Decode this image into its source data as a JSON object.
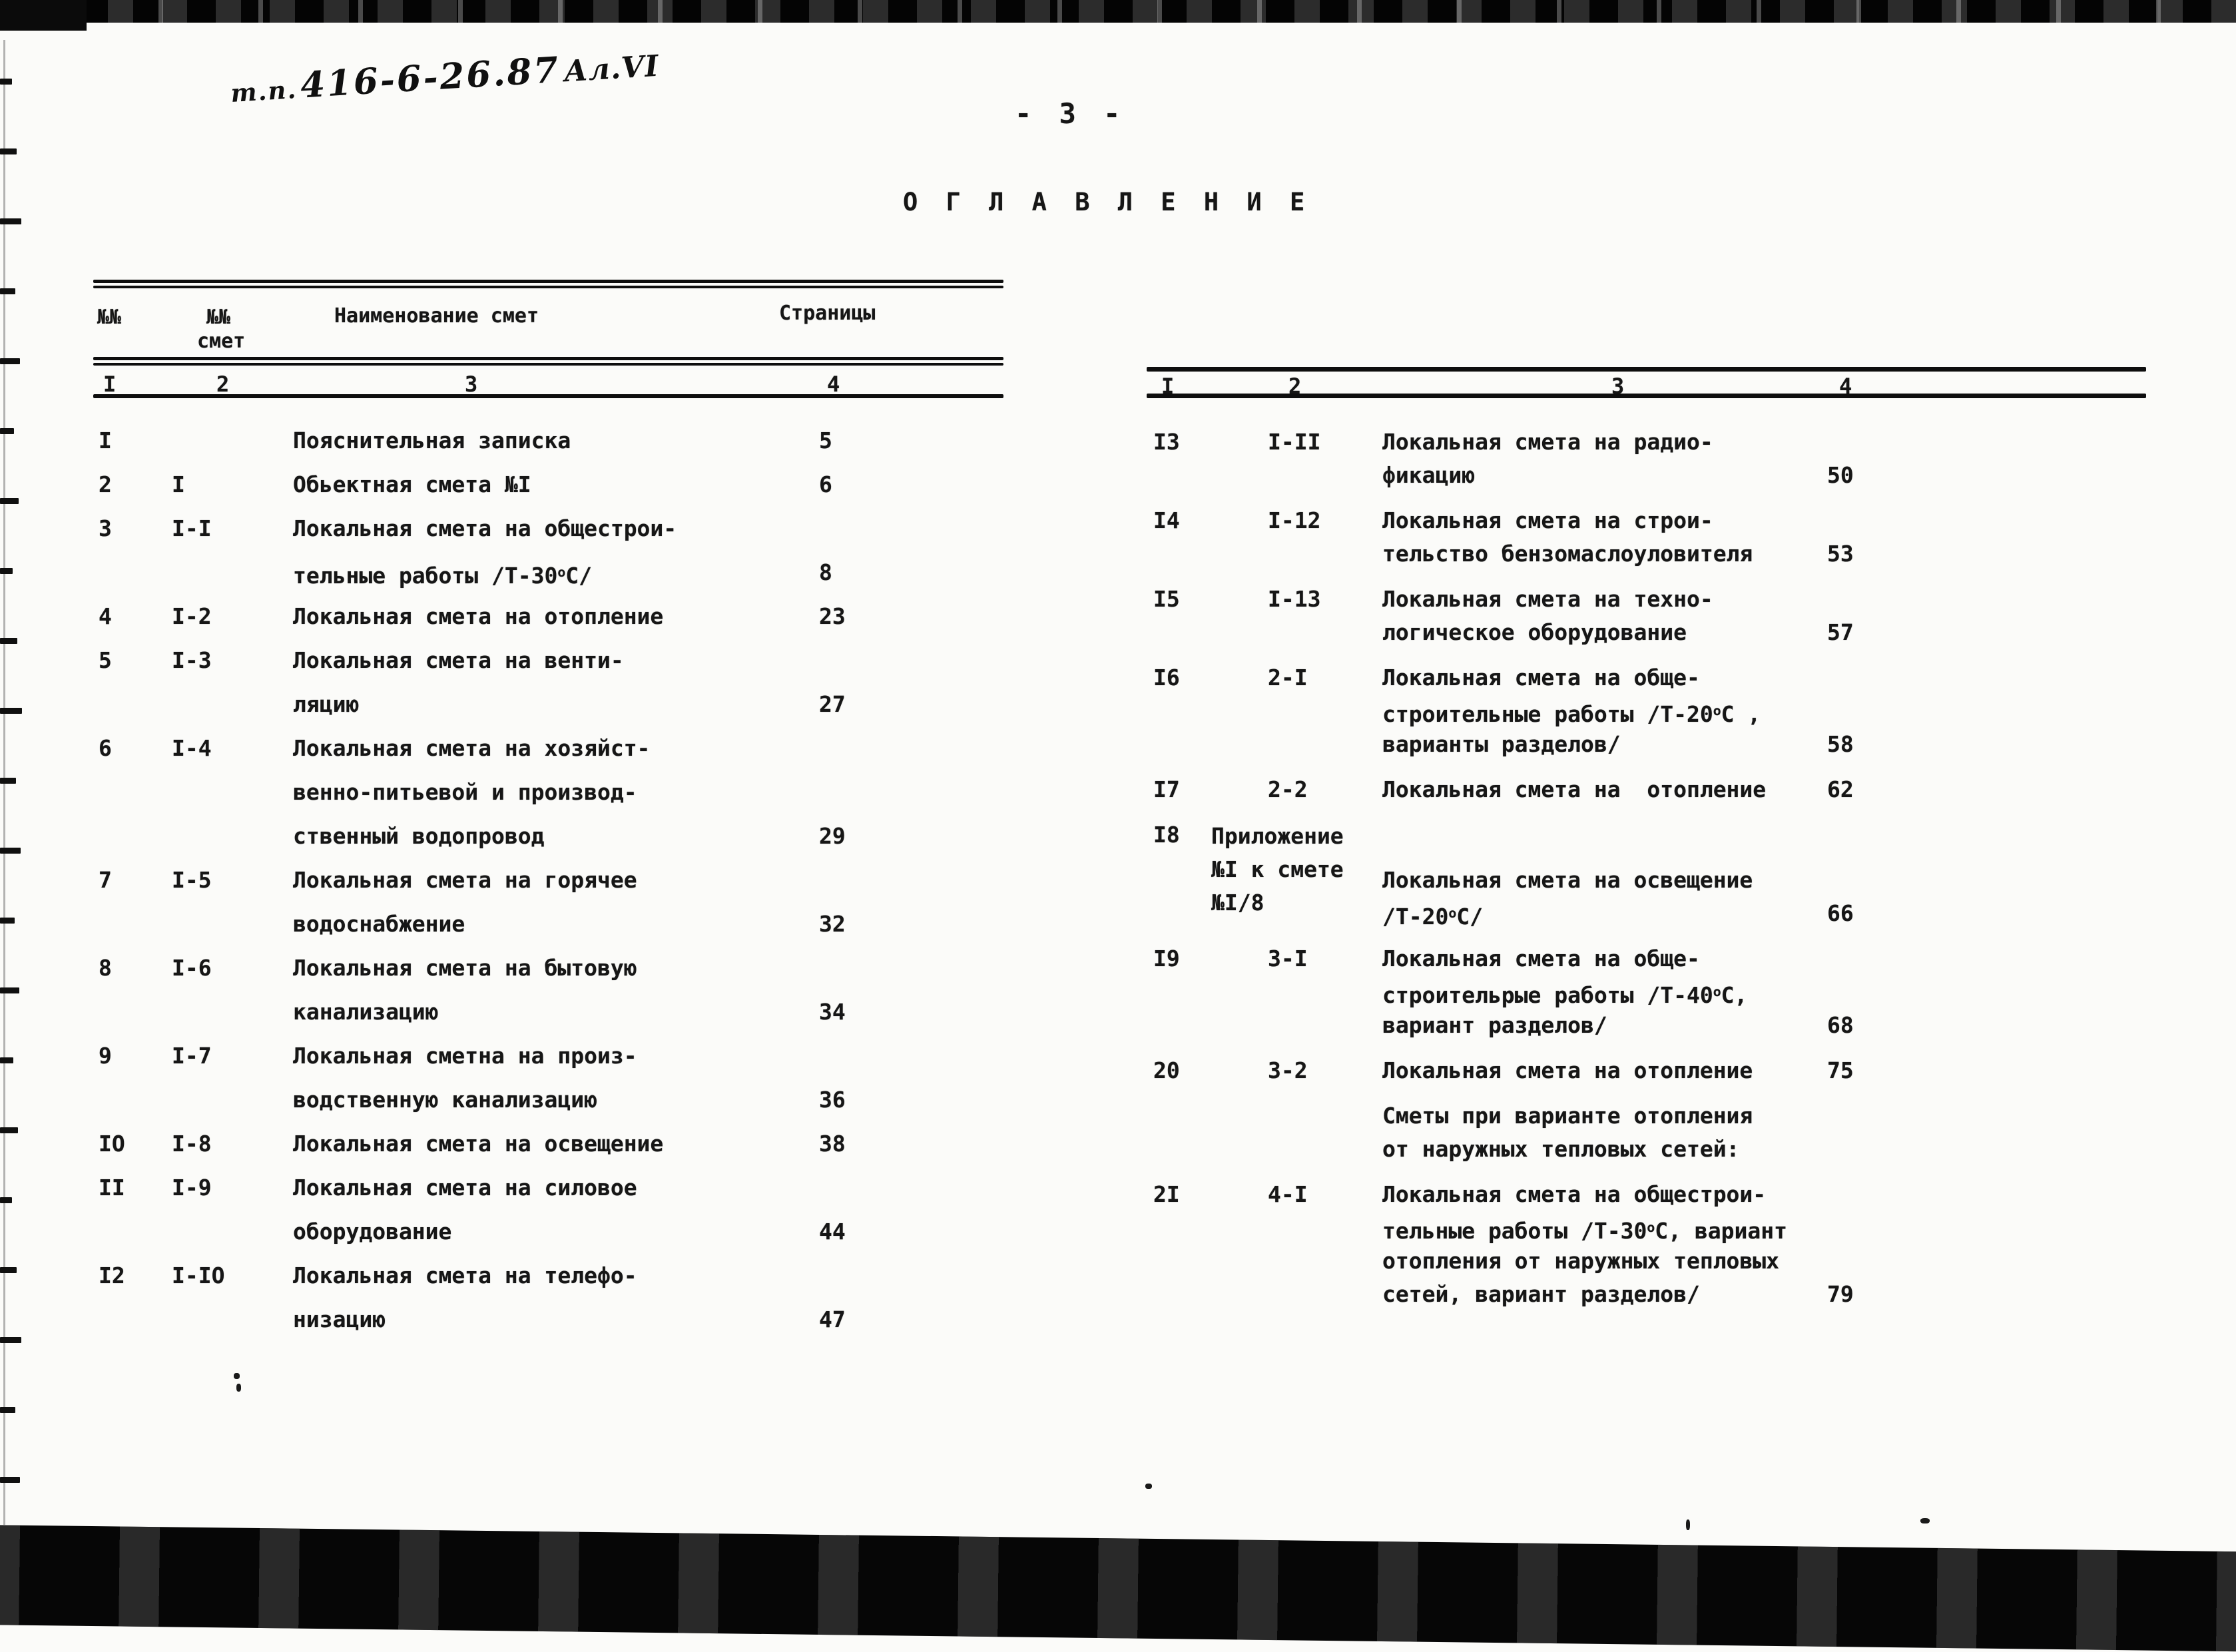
{
  "page": {
    "handwritten_code_prefix": "т.п.",
    "handwritten_code_number": "416-6-26.87",
    "handwritten_code_album": "Ал.VI",
    "page_number": "- 3 -",
    "title": "О Г Л А В Л Е Н И Е"
  },
  "colors": {
    "ink": "#161616",
    "paper": "#fbfbf9"
  },
  "left_table": {
    "headers": {
      "col1": "№№",
      "col2_line1": "№№",
      "col2_line2": "смет",
      "col3": "Наименование смет",
      "col4": "Страницы"
    },
    "column_numbers": [
      "I",
      "2",
      "3",
      "4"
    ],
    "rows": [
      {
        "num": "I",
        "code": "",
        "lines": [
          "Пояснительная записка"
        ],
        "page": "5"
      },
      {
        "num": "2",
        "code": "I",
        "lines": [
          "Обьектная смета №I"
        ],
        "page": "6"
      },
      {
        "num": "3",
        "code": "I-I",
        "lines": [
          "Локальная смета на общестрои-",
          "тельные работы /Т-30°С/"
        ],
        "page": "8"
      },
      {
        "num": "4",
        "code": "I-2",
        "lines": [
          "Локальная смета на отопление"
        ],
        "page": "23"
      },
      {
        "num": "5",
        "code": "I-3",
        "lines": [
          "Локальная смета на венти-",
          "ляцию"
        ],
        "page": "27"
      },
      {
        "num": "6",
        "code": "I-4",
        "lines": [
          "Локальная смета на хозяйст-",
          "венно-питьевой и производ-",
          "ственный водопровод"
        ],
        "page": "29"
      },
      {
        "num": "7",
        "code": "I-5",
        "lines": [
          "Локальная смета на горячее",
          "водоснабжение"
        ],
        "page": "32"
      },
      {
        "num": "8",
        "code": "I-6",
        "lines": [
          "Локальная смета на бытовую",
          "канализацию"
        ],
        "page": "34"
      },
      {
        "num": "9",
        "code": "I-7",
        "lines": [
          "Локальная сметна на произ-",
          "водственную канализацию"
        ],
        "page": "36"
      },
      {
        "num": "IO",
        "code": "I-8",
        "lines": [
          "Локальная смета на освещение"
        ],
        "page": "38"
      },
      {
        "num": "II",
        "code": "I-9",
        "lines": [
          "Локальная смета на силовое",
          "оборудование"
        ],
        "page": "44"
      },
      {
        "num": "I2",
        "code": "I-IO",
        "lines": [
          "Локальная смета на телефо-",
          "низацию"
        ],
        "page": "47"
      }
    ]
  },
  "right_table": {
    "column_numbers": [
      "I",
      "2",
      "3",
      "4"
    ],
    "rows": [
      {
        "num": "I3",
        "code": "I-II",
        "lines": [
          "Локальная смета на радио-",
          "фикацию"
        ],
        "page": "50"
      },
      {
        "num": "I4",
        "code": "I-12",
        "lines": [
          "Локальная смета на строи-",
          "тельство бензомаслоуловителя"
        ],
        "page": "53"
      },
      {
        "num": "I5",
        "code": "I-13",
        "lines": [
          "Локальная смета на техно-",
          "логическое оборудование"
        ],
        "page": "57"
      },
      {
        "num": "I6",
        "code": "2-I",
        "lines": [
          "Локальная смета на обще-",
          "строительные работы /Т-20°С ,",
          "варианты разделов/"
        ],
        "page": "58"
      },
      {
        "num": "I7",
        "code": "2-2",
        "lines": [
          "Локальная смета на  отопление"
        ],
        "page": "62"
      },
      {
        "num": "I8",
        "code_lines": [
          "Приложение",
          "№I к смете",
          "№I/8"
        ],
        "lines": [
          "Локальная смета на освещение",
          "/Т-20°С/"
        ],
        "page": "66"
      },
      {
        "num": "I9",
        "code": "3-I",
        "lines": [
          "Локальная смета на обще-",
          "строительрые работы /Т-40°С,",
          "вариант разделов/"
        ],
        "page": "68"
      },
      {
        "num": "20",
        "code": "3-2",
        "lines": [
          "Локальная смета на отопление"
        ],
        "page": "75"
      },
      {
        "num": "",
        "code": "",
        "lines": [
          "Сметы при варианте отопления",
          "от наружных тепловых сетей:"
        ],
        "page": ""
      },
      {
        "num": "2I",
        "code": "4-I",
        "lines": [
          "Локальная смета на общестрои-",
          "тельные работы /Т-30°С, вариант",
          "отопления от наружных тепловых",
          "сетей, вариант разделов/"
        ],
        "page": "79"
      }
    ]
  }
}
